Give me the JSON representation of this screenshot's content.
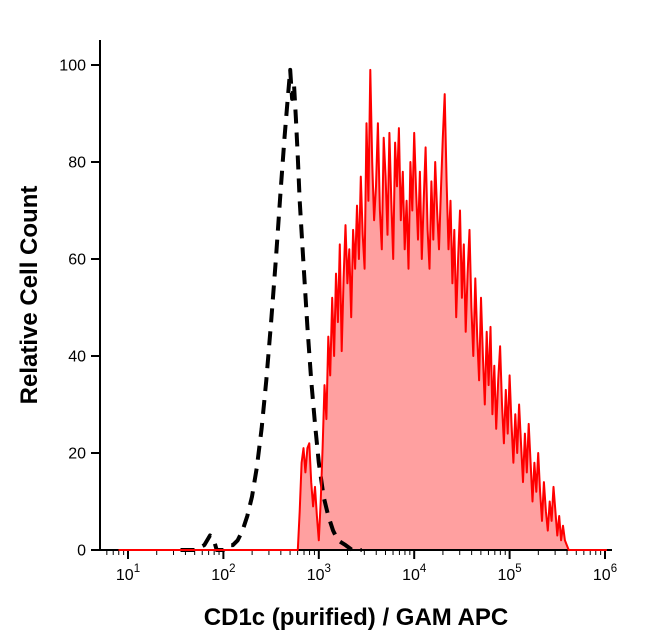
{
  "figure": {
    "background": "#ffffff",
    "axis_color": "#000000"
  },
  "chart_data": {
    "type": "area",
    "variant": "flow-cytometry-histogram-overlay",
    "title": "",
    "xlabel": "CD1c (purified) / GAM APC",
    "ylabel": "Relative Cell Count",
    "x_scale": "log10",
    "grid": false,
    "legend": false,
    "x_axis": {
      "base": 10,
      "exponents": [
        1,
        2,
        3,
        4,
        5,
        6
      ],
      "range_log": [
        0.72,
        6.06
      ],
      "minor_ticks_per_decade": [
        2,
        3,
        4,
        5,
        6,
        7,
        8,
        9
      ]
    },
    "y_axis": {
      "ticks": [
        0,
        20,
        40,
        60,
        80,
        100
      ],
      "range": [
        0,
        100
      ]
    },
    "series": [
      {
        "name": "dashed-control-histogram",
        "line_style": "dashed",
        "stroke": "#000000",
        "stroke_width": 4,
        "fill": "none",
        "points": [
          [
            1.55,
            0
          ],
          [
            1.7,
            0
          ],
          [
            1.8,
            1
          ],
          [
            1.86,
            3
          ],
          [
            1.9,
            2
          ],
          [
            1.93,
            0
          ],
          [
            1.96,
            0
          ],
          [
            2.0,
            0
          ],
          [
            2.05,
            1
          ],
          [
            2.1,
            1
          ],
          [
            2.15,
            2
          ],
          [
            2.2,
            4
          ],
          [
            2.25,
            7
          ],
          [
            2.3,
            11
          ],
          [
            2.35,
            17
          ],
          [
            2.4,
            25
          ],
          [
            2.45,
            35
          ],
          [
            2.5,
            47
          ],
          [
            2.55,
            60
          ],
          [
            2.6,
            74
          ],
          [
            2.64,
            85
          ],
          [
            2.67,
            92
          ],
          [
            2.7,
            99
          ],
          [
            2.72,
            93
          ],
          [
            2.74,
            96
          ],
          [
            2.76,
            89
          ],
          [
            2.78,
            81
          ],
          [
            2.8,
            72
          ],
          [
            2.84,
            59
          ],
          [
            2.88,
            46
          ],
          [
            2.92,
            35
          ],
          [
            2.96,
            26
          ],
          [
            3.0,
            18
          ],
          [
            3.05,
            11
          ],
          [
            3.1,
            7
          ],
          [
            3.15,
            4
          ],
          [
            3.2,
            2
          ],
          [
            3.28,
            1
          ],
          [
            3.35,
            0
          ],
          [
            3.45,
            0
          ]
        ]
      },
      {
        "name": "red-sample-histogram",
        "line_style": "solid",
        "stroke": "#ff0000",
        "stroke_width": 2,
        "fill": "#ffa0a0",
        "baseline_start_log": 0.9,
        "baseline_end_log": 6.02,
        "x_start_log": 2.78,
        "x_step_log": 0.02,
        "y": [
          0,
          8,
          18,
          21,
          16,
          21,
          22,
          14,
          9,
          13,
          7,
          2,
          10,
          21,
          34,
          27,
          44,
          36,
          52,
          40,
          57,
          47,
          63,
          41,
          56,
          67,
          55,
          62,
          48,
          66,
          58,
          71,
          60,
          77,
          65,
          58,
          88,
          72,
          99,
          80,
          68,
          75,
          88,
          70,
          62,
          85,
          77,
          65,
          86,
          72,
          60,
          84,
          75,
          87,
          68,
          78,
          62,
          72,
          58,
          80,
          70,
          86,
          74,
          64,
          78,
          60,
          72,
          83,
          66,
          58,
          76,
          64,
          80,
          70,
          62,
          74,
          85,
          94,
          76,
          62,
          72,
          55,
          66,
          48,
          60,
          70,
          52,
          63,
          45,
          57,
          66,
          50,
          40,
          56,
          44,
          35,
          52,
          40,
          30,
          45,
          34,
          46,
          28,
          38,
          25,
          35,
          42,
          30,
          22,
          33,
          24,
          36,
          26,
          18,
          28,
          20,
          30,
          22,
          14,
          24,
          16,
          26,
          18,
          10,
          18,
          12,
          20,
          12,
          6,
          14,
          8,
          4,
          10,
          6,
          13,
          8,
          3,
          7,
          2,
          5,
          2,
          1,
          0
        ]
      }
    ]
  }
}
